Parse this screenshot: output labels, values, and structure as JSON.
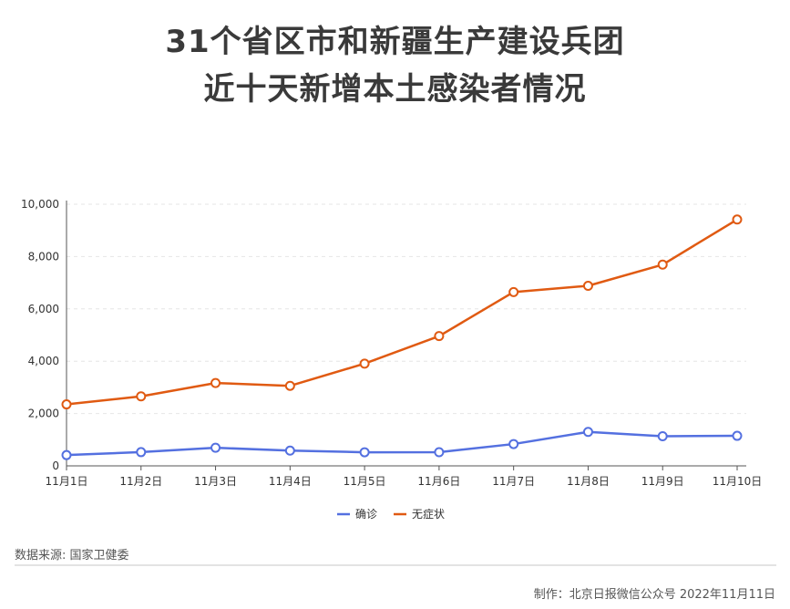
{
  "title_line1": "31个省区市和新疆生产建设兵团",
  "title_line2": "近十天新增本土感染者情况",
  "source": "数据来源: 国家卫健委",
  "credit": "制作：北京日报微信公众号 2022年11月11日",
  "colors": {
    "confirmed": "#5470e0",
    "asymptomatic": "#e05a12",
    "grid": "#e6e6e6",
    "axis": "#555555"
  },
  "chart_data": {
    "type": "line",
    "categories": [
      "11月1日",
      "11月2日",
      "11月3日",
      "11月4日",
      "11月5日",
      "11月6日",
      "11月7日",
      "11月8日",
      "11月9日",
      "11月10日"
    ],
    "series": [
      {
        "name": "确诊",
        "values": [
          412,
          525,
          692,
          582,
          520,
          523,
          834,
          1299,
          1133,
          1148
        ]
      },
      {
        "name": "无症状",
        "values": [
          2350,
          2656,
          3167,
          3059,
          3908,
          4960,
          6643,
          6882,
          7691,
          9415
        ]
      }
    ],
    "y_ticks": [
      "0",
      "2,000",
      "4,000",
      "6,000",
      "8,000",
      "10,000"
    ],
    "ylim": [
      0,
      10000
    ],
    "grid": true,
    "legend_position": "bottom"
  }
}
